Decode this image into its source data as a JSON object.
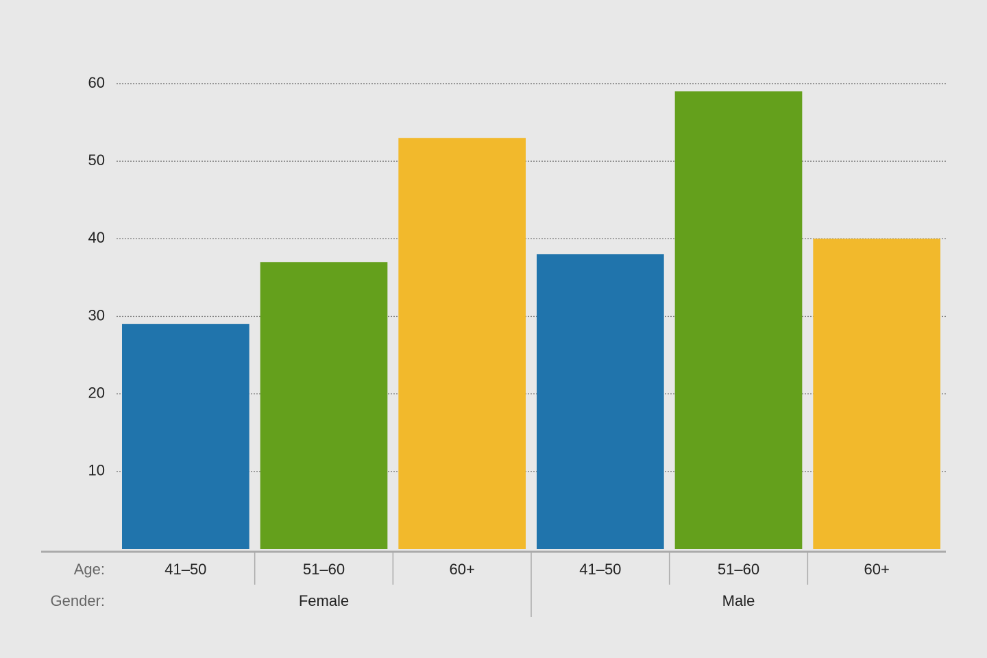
{
  "chart_data": {
    "type": "bar",
    "level_labels": [
      "Age:",
      "Gender:"
    ],
    "groups": [
      {
        "label": "Female",
        "categories": [
          "41–50",
          "51–60",
          "60+"
        ],
        "values": [
          29,
          37,
          53
        ]
      },
      {
        "label": "Male",
        "categories": [
          "41–50",
          "51–60",
          "60+"
        ],
        "values": [
          38,
          59,
          40
        ]
      }
    ],
    "colors": [
      "#2074ac",
      "#64a01c",
      "#f2b92c"
    ],
    "ylim": [
      0,
      60
    ],
    "yticks": [
      10,
      20,
      30,
      40,
      50,
      60
    ],
    "grid": true
  }
}
